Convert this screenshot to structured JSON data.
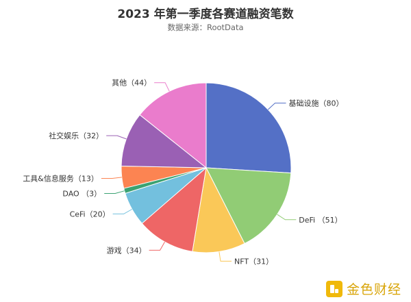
{
  "header": {
    "title": "2023 年第一季度各赛道融资笔数",
    "subtitle": "数据来源：RootData"
  },
  "watermark": {
    "text": "金色财经",
    "icon": "jinse-logo-icon"
  },
  "chart_data": {
    "type": "pie",
    "title": "2023 年第一季度各赛道融资笔数",
    "subtitle": "数据来源：RootData",
    "slices": [
      {
        "label": "基础设施",
        "value": 80,
        "display": "基础设施（80）",
        "color": "#5470c6"
      },
      {
        "label": "DeFi",
        "value": 51,
        "display": "DeFi （51）",
        "color": "#91cc75"
      },
      {
        "label": "NFT",
        "value": 31,
        "display": "NFT（31）",
        "color": "#fac858"
      },
      {
        "label": "游戏",
        "value": 34,
        "display": "游戏（34）",
        "color": "#ee6666"
      },
      {
        "label": "CeFi",
        "value": 20,
        "display": "CeFi（20）",
        "color": "#73c0de"
      },
      {
        "label": "DAO",
        "value": 3,
        "display": "DAO （3）",
        "color": "#3ba272"
      },
      {
        "label": "工具&信息服务",
        "value": 13,
        "display": "工具&信息服务（13）",
        "color": "#fc8452"
      },
      {
        "label": "社交娱乐",
        "value": 32,
        "display": "社交娱乐（32）",
        "color": "#9a60b4"
      },
      {
        "label": "其他",
        "value": 44,
        "display": "其他（44）",
        "color": "#ea7ccc"
      }
    ],
    "start_angle": "12 o'clock",
    "direction": "clockwise",
    "legend": "none",
    "labels": "outside with leader lines"
  }
}
